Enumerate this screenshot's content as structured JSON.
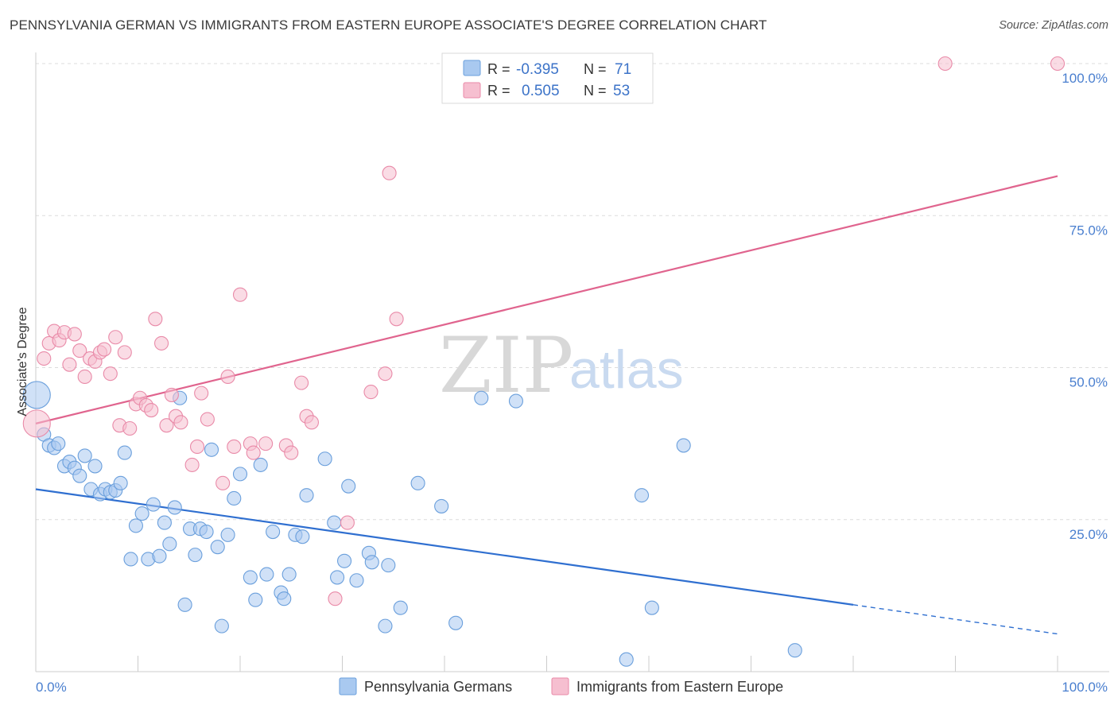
{
  "title": "PENNSYLVANIA GERMAN VS IMMIGRANTS FROM EASTERN EUROPE ASSOCIATE'S DEGREE CORRELATION CHART",
  "source": "Source: ZipAtlas.com",
  "watermark": {
    "zip": "ZIP",
    "atlas": "atlas"
  },
  "legend_stats": [
    {
      "r_label": "R =",
      "r_value": "-0.395",
      "n_label": "N =",
      "n_value": "71",
      "color": "#a9c9f0"
    },
    {
      "r_label": "R =",
      "r_value": "0.505",
      "n_label": "N =",
      "n_value": "53",
      "color": "#f6bfd0"
    }
  ],
  "chart_data": {
    "type": "scatter",
    "title": "PENNSYLVANIA GERMAN VS IMMIGRANTS FROM EASTERN EUROPE ASSOCIATE'S DEGREE CORRELATION CHART",
    "xlabel": "",
    "ylabel": "Associate's Degree",
    "xlim": [
      0,
      100
    ],
    "ylim": [
      0,
      100
    ],
    "x_tick_labels": [
      "0.0%",
      "100.0%"
    ],
    "y_ticks": [
      25,
      50,
      75,
      100
    ],
    "y_tick_labels": [
      "25.0%",
      "50.0%",
      "75.0%",
      "100.0%"
    ],
    "grid": true,
    "legend_position": "bottom",
    "series": [
      {
        "name": "Pennsylvania Germans",
        "color": "#a9c9f0",
        "stroke": "#6a9fdc",
        "trend": {
          "x0": 0,
          "y0": 30.0,
          "x1": 80,
          "y1": 11.0,
          "dashed_to_x": 100,
          "dashed_to_y": 6.2,
          "color": "#2f6fd0"
        },
        "points": [
          [
            0.1,
            45.5
          ],
          [
            0.8,
            39
          ],
          [
            1.3,
            37.2
          ],
          [
            1.8,
            36.8
          ],
          [
            2.2,
            37.5
          ],
          [
            2.8,
            33.8
          ],
          [
            3.3,
            34.5
          ],
          [
            3.8,
            33.5
          ],
          [
            4.3,
            32.2
          ],
          [
            4.8,
            35.5
          ],
          [
            5.4,
            30
          ],
          [
            5.8,
            33.8
          ],
          [
            6.3,
            29.2
          ],
          [
            6.8,
            30
          ],
          [
            7.3,
            29.5
          ],
          [
            7.8,
            29.8
          ],
          [
            8.3,
            31
          ],
          [
            8.7,
            36
          ],
          [
            9.3,
            18.5
          ],
          [
            9.8,
            24
          ],
          [
            10.4,
            26
          ],
          [
            11,
            18.5
          ],
          [
            11.5,
            27.5
          ],
          [
            12.1,
            19
          ],
          [
            12.6,
            24.5
          ],
          [
            13.1,
            21
          ],
          [
            13.6,
            27
          ],
          [
            14.1,
            45
          ],
          [
            14.6,
            11
          ],
          [
            15.1,
            23.5
          ],
          [
            15.6,
            19.2
          ],
          [
            16.1,
            23.5
          ],
          [
            16.7,
            23
          ],
          [
            17.2,
            36.5
          ],
          [
            17.8,
            20.5
          ],
          [
            18.2,
            7.5
          ],
          [
            18.8,
            22.5
          ],
          [
            19.4,
            28.5
          ],
          [
            20,
            32.5
          ],
          [
            21,
            15.5
          ],
          [
            21.5,
            11.8
          ],
          [
            22,
            34
          ],
          [
            22.6,
            16
          ],
          [
            23.2,
            23
          ],
          [
            24,
            13
          ],
          [
            24.3,
            12
          ],
          [
            24.8,
            16
          ],
          [
            25.4,
            22.5
          ],
          [
            26.1,
            22.2
          ],
          [
            26.5,
            29
          ],
          [
            28.3,
            35
          ],
          [
            29.2,
            24.5
          ],
          [
            29.5,
            15.5
          ],
          [
            30.2,
            18.2
          ],
          [
            30.6,
            30.5
          ],
          [
            31.4,
            15
          ],
          [
            32.6,
            19.5
          ],
          [
            32.9,
            18
          ],
          [
            34.2,
            7.5
          ],
          [
            34.5,
            17.5
          ],
          [
            35.7,
            10.5
          ],
          [
            37.4,
            31
          ],
          [
            39.7,
            27.2
          ],
          [
            41.1,
            8
          ],
          [
            43.6,
            45
          ],
          [
            47,
            44.5
          ],
          [
            57.8,
            2
          ],
          [
            59.3,
            29
          ],
          [
            60.3,
            10.5
          ],
          [
            63.4,
            37.2
          ],
          [
            74.3,
            3.5
          ]
        ]
      },
      {
        "name": "Immigrants from Eastern Europe",
        "color": "#f6bfd0",
        "stroke": "#e98aa8",
        "trend": {
          "x0": 0,
          "y0": 40.8,
          "x1": 100,
          "y1": 81.5,
          "color": "#e0648e"
        },
        "points": [
          [
            0.1,
            40.8
          ],
          [
            0.8,
            51.5
          ],
          [
            1.3,
            54
          ],
          [
            1.8,
            56
          ],
          [
            2.3,
            54.5
          ],
          [
            2.8,
            55.8
          ],
          [
            3.3,
            50.5
          ],
          [
            3.8,
            55.5
          ],
          [
            4.3,
            52.8
          ],
          [
            4.8,
            48.5
          ],
          [
            5.3,
            51.5
          ],
          [
            5.8,
            51
          ],
          [
            6.3,
            52.5
          ],
          [
            6.7,
            53
          ],
          [
            7.3,
            49
          ],
          [
            7.8,
            55
          ],
          [
            8.2,
            40.5
          ],
          [
            8.7,
            52.5
          ],
          [
            9.2,
            40
          ],
          [
            9.8,
            44
          ],
          [
            10.2,
            45
          ],
          [
            10.8,
            43.8
          ],
          [
            11.3,
            43
          ],
          [
            11.7,
            58
          ],
          [
            12.3,
            54
          ],
          [
            12.8,
            40.5
          ],
          [
            13.3,
            45.5
          ],
          [
            13.7,
            42
          ],
          [
            14.2,
            41
          ],
          [
            15.3,
            34
          ],
          [
            15.8,
            37
          ],
          [
            16.2,
            45.8
          ],
          [
            16.8,
            41.5
          ],
          [
            18.3,
            31
          ],
          [
            18.8,
            48.5
          ],
          [
            19.4,
            37
          ],
          [
            20,
            62
          ],
          [
            21,
            37.5
          ],
          [
            21.3,
            36
          ],
          [
            22.5,
            37.5
          ],
          [
            24.5,
            37.2
          ],
          [
            25,
            36
          ],
          [
            26,
            47.5
          ],
          [
            26.5,
            42
          ],
          [
            27,
            41
          ],
          [
            29.3,
            12
          ],
          [
            30.5,
            24.5
          ],
          [
            32.8,
            46
          ],
          [
            34.2,
            49
          ],
          [
            34.6,
            82
          ],
          [
            35.3,
            58
          ],
          [
            89,
            100
          ],
          [
            100,
            100
          ]
        ]
      }
    ]
  },
  "bottom_legend": [
    {
      "label": "Pennsylvania Germans",
      "color": "#a9c9f0"
    },
    {
      "label": "Immigrants from Eastern Europe",
      "color": "#f6bfd0"
    }
  ]
}
